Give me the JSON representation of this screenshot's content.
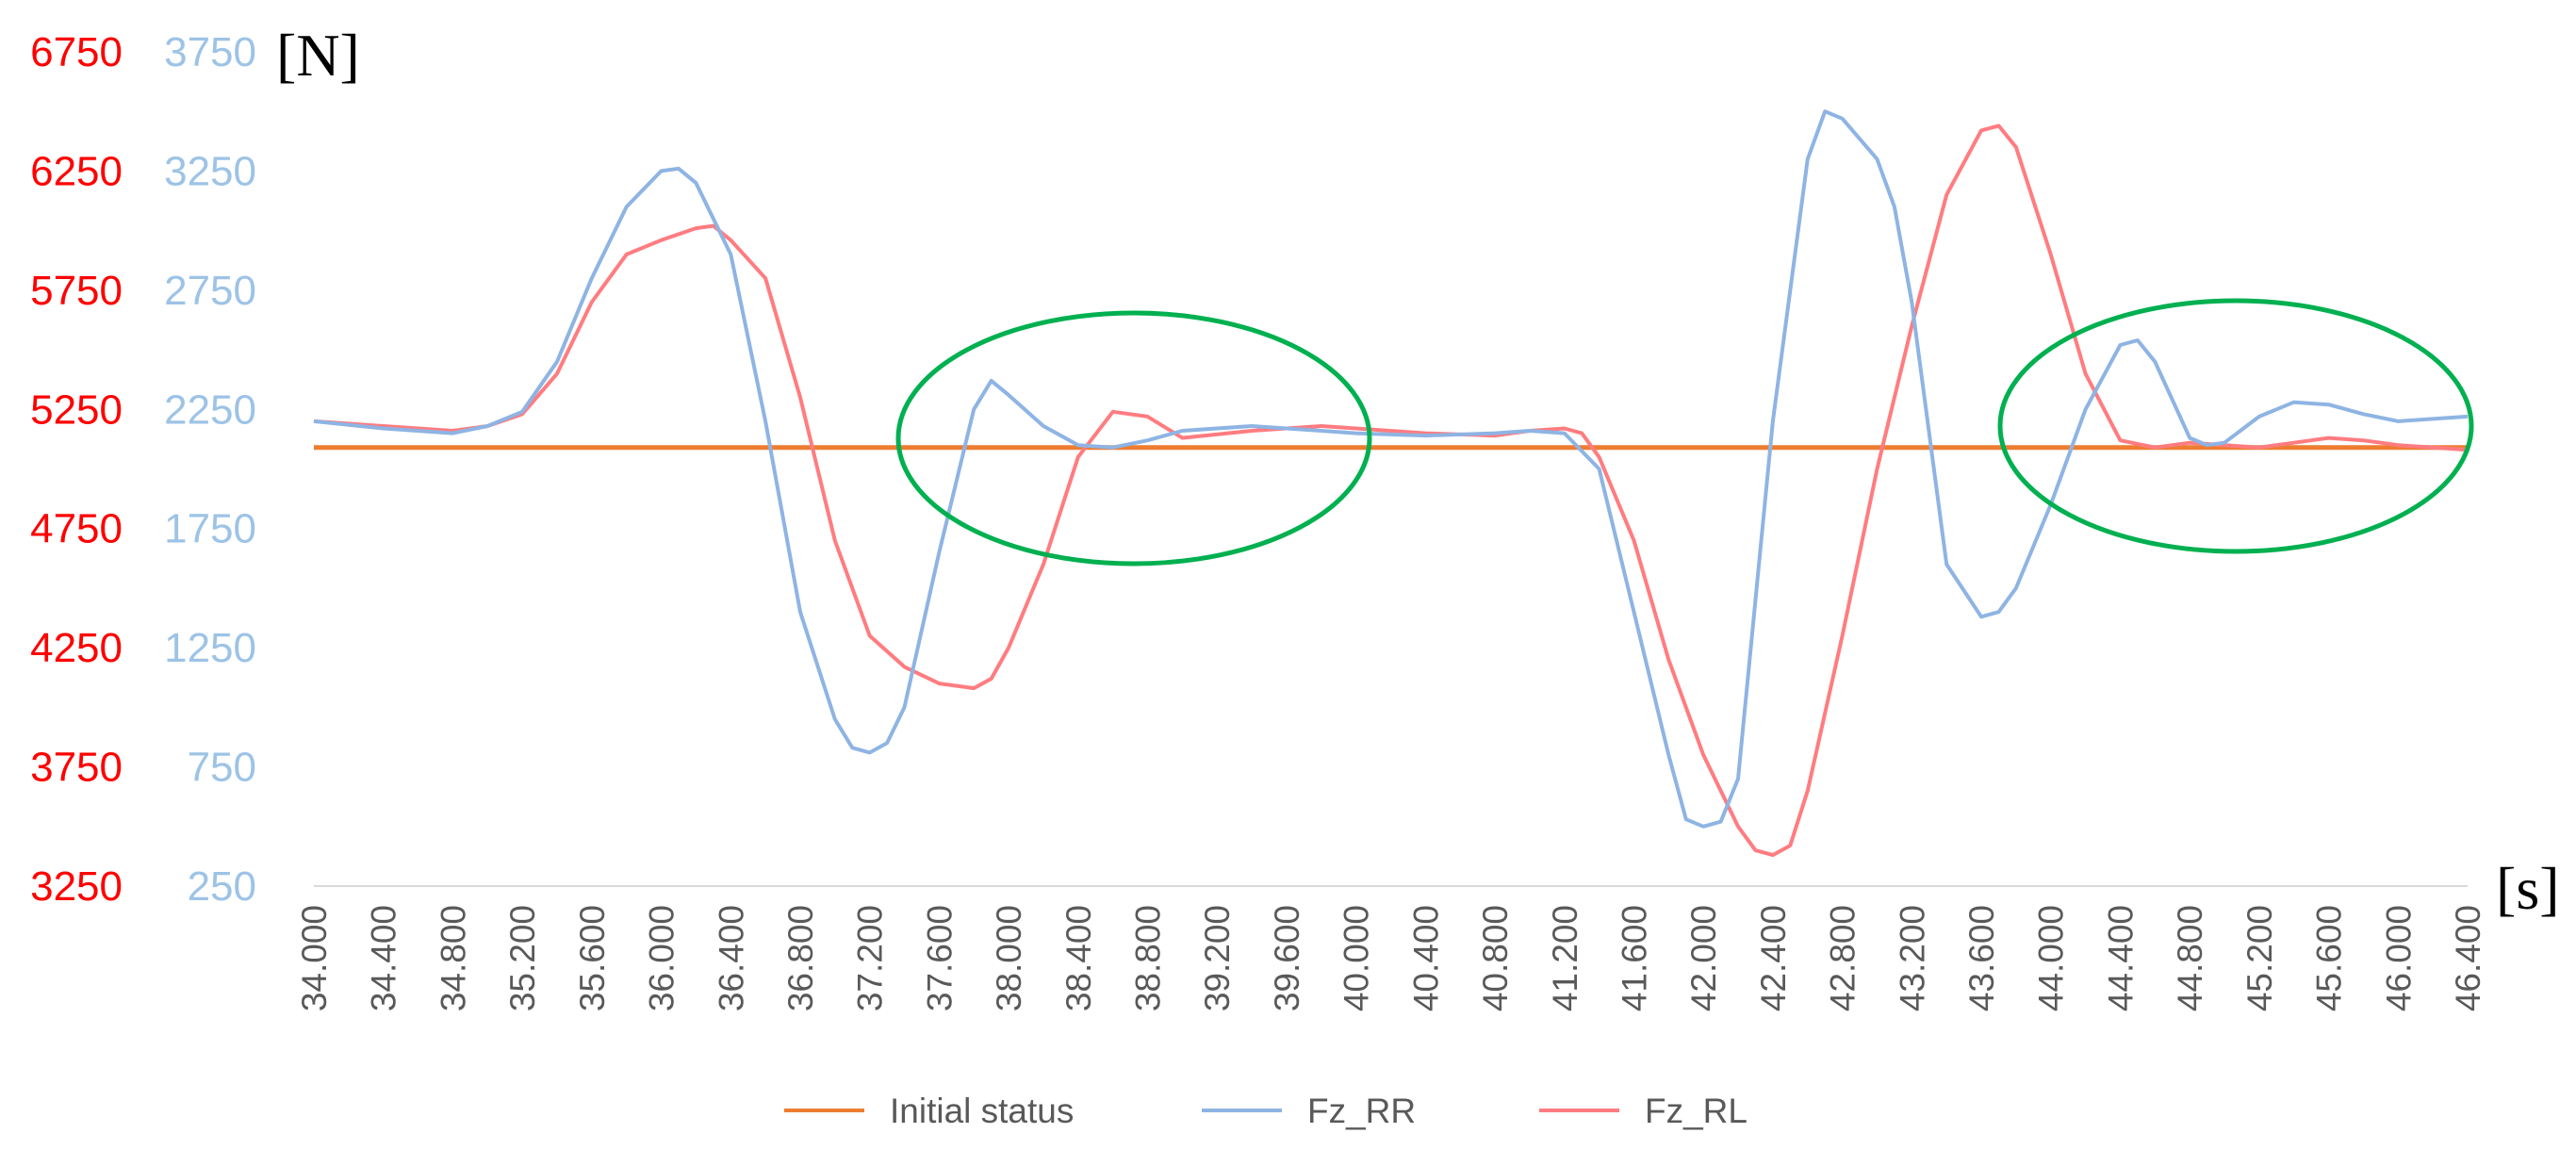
{
  "chart_data": {
    "type": "line",
    "title": "",
    "xlabel": "[s]",
    "ylabel": "[N]",
    "xlim": [
      34.0,
      46.4
    ],
    "x_ticks": [
      "34.000",
      "34.400",
      "34.800",
      "35.200",
      "35.600",
      "36.000",
      "36.400",
      "36.800",
      "37.200",
      "37.600",
      "38.000",
      "38.400",
      "38.800",
      "39.200",
      "39.600",
      "40.000",
      "40.400",
      "40.800",
      "41.200",
      "41.600",
      "42.000",
      "42.400",
      "42.800",
      "43.200",
      "43.600",
      "44.000",
      "44.400",
      "44.800",
      "45.200",
      "45.600",
      "46.000",
      "46.400"
    ],
    "y_left_ticks": [
      "6750",
      "6250",
      "5750",
      "5250",
      "4750",
      "4250",
      "3750",
      "3250"
    ],
    "y_left_range": [
      3250,
      6750
    ],
    "y_right_ticks": [
      "3750",
      "3250",
      "2750",
      "2250",
      "1750",
      "1250",
      "750",
      "250"
    ],
    "y_right_range": [
      250,
      3750
    ],
    "grid": false,
    "legend_position": "bottom",
    "colors": {
      "left_axis": "#ff0000",
      "right_axis": "#9dc3e6",
      "initial": "#ed7d31",
      "fz_rr": "#8eb4e3",
      "fz_rl": "#ff7c80",
      "ellipse": "#00b050",
      "axis_line": "#d9d9d9"
    },
    "annotations": [
      "green ellipse near 37.6–40.0 s",
      "green ellipse near 44.0–46.4 s"
    ],
    "series": [
      {
        "name": "Initial status",
        "axis": "right",
        "x": [
          34.0,
          46.4
        ],
        "y": [
          2090,
          2090
        ]
      },
      {
        "name": "Fz_RR",
        "axis": "right",
        "x": [
          34.0,
          34.4,
          34.8,
          35.0,
          35.2,
          35.4,
          35.6,
          35.8,
          36.0,
          36.1,
          36.2,
          36.4,
          36.6,
          36.8,
          37.0,
          37.1,
          37.2,
          37.3,
          37.4,
          37.6,
          37.8,
          37.9,
          38.0,
          38.2,
          38.4,
          38.6,
          38.8,
          39.0,
          39.4,
          39.8,
          40.0,
          40.4,
          40.8,
          41.0,
          41.2,
          41.4,
          41.6,
          41.8,
          41.9,
          42.0,
          42.1,
          42.2,
          42.4,
          42.6,
          42.7,
          42.8,
          43.0,
          43.1,
          43.2,
          43.4,
          43.6,
          43.7,
          43.8,
          44.0,
          44.2,
          44.4,
          44.5,
          44.6,
          44.8,
          44.9,
          45.0,
          45.2,
          45.4,
          45.6,
          45.8,
          46.0,
          46.2,
          46.4
        ],
        "y": [
          2200,
          2170,
          2150,
          2180,
          2240,
          2450,
          2800,
          3100,
          3250,
          3260,
          3200,
          2900,
          2200,
          1400,
          950,
          830,
          810,
          850,
          1000,
          1650,
          2250,
          2370,
          2310,
          2180,
          2100,
          2090,
          2120,
          2160,
          2180,
          2160,
          2150,
          2140,
          2150,
          2160,
          2150,
          2000,
          1400,
          800,
          530,
          500,
          520,
          700,
          2200,
          3300,
          3500,
          3470,
          3300,
          3100,
          2700,
          1600,
          1380,
          1400,
          1500,
          1850,
          2250,
          2520,
          2540,
          2450,
          2130,
          2100,
          2110,
          2220,
          2280,
          2270,
          2230,
          2200,
          2210,
          2220
        ]
      },
      {
        "name": "Fz_RL",
        "axis": "left",
        "x": [
          34.0,
          34.4,
          34.8,
          35.0,
          35.2,
          35.4,
          35.6,
          35.8,
          36.0,
          36.2,
          36.3,
          36.4,
          36.6,
          36.8,
          37.0,
          37.2,
          37.4,
          37.6,
          37.8,
          37.9,
          38.0,
          38.2,
          38.4,
          38.6,
          38.8,
          39.0,
          39.4,
          39.8,
          40.0,
          40.4,
          40.8,
          41.0,
          41.2,
          41.3,
          41.4,
          41.6,
          41.8,
          42.0,
          42.2,
          42.3,
          42.4,
          42.5,
          42.6,
          42.8,
          43.0,
          43.2,
          43.4,
          43.6,
          43.7,
          43.8,
          44.0,
          44.2,
          44.4,
          44.6,
          44.8,
          45.0,
          45.2,
          45.4,
          45.6,
          45.8,
          46.0,
          46.2,
          46.4
        ],
        "y": [
          5200,
          5180,
          5160,
          5180,
          5230,
          5400,
          5700,
          5900,
          5960,
          6010,
          6020,
          5960,
          5800,
          5300,
          4700,
          4300,
          4170,
          4100,
          4080,
          4120,
          4250,
          4600,
          5050,
          5240,
          5220,
          5130,
          5160,
          5180,
          5170,
          5150,
          5140,
          5160,
          5170,
          5150,
          5050,
          4700,
          4200,
          3800,
          3500,
          3400,
          3380,
          3420,
          3650,
          4300,
          5000,
          5600,
          6150,
          6420,
          6440,
          6350,
          5900,
          5400,
          5120,
          5090,
          5110,
          5100,
          5090,
          5110,
          5130,
          5120,
          5100,
          5090,
          5080
        ]
      }
    ]
  }
}
